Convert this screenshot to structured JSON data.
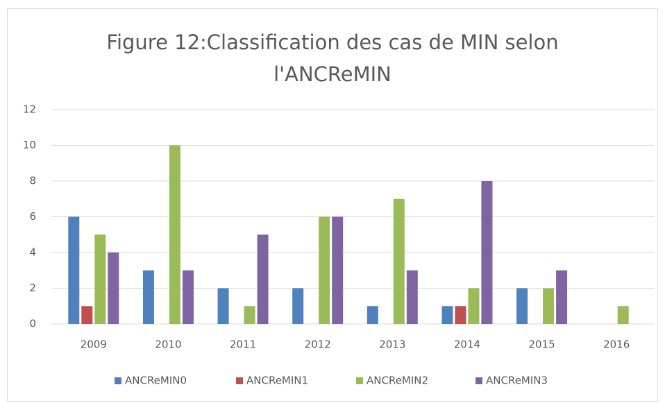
{
  "chart_data": {
    "type": "bar",
    "title": "Figure 12:Classification des cas de MIN selon l'ANCReMIN",
    "categories": [
      "2009",
      "2010",
      "2011",
      "2012",
      "2013",
      "2014",
      "2015",
      "2016"
    ],
    "series": [
      {
        "name": "ANCReMIN0",
        "color": "#4f81bd",
        "values": [
          6,
          3,
          2,
          2,
          1,
          1,
          2,
          0
        ]
      },
      {
        "name": "ANCReMIN1",
        "color": "#c0504d",
        "values": [
          1,
          0,
          0,
          0,
          0,
          1,
          0,
          0
        ]
      },
      {
        "name": "ANCReMIN2",
        "color": "#9bbb59",
        "values": [
          5,
          10,
          1,
          6,
          7,
          2,
          2,
          1
        ]
      },
      {
        "name": "ANCReMIN3",
        "color": "#8064a2",
        "values": [
          4,
          3,
          5,
          6,
          3,
          8,
          3,
          0
        ]
      }
    ],
    "ylim": [
      0,
      12
    ],
    "yticks": [
      0,
      2,
      4,
      6,
      8,
      10,
      12
    ],
    "grid": true,
    "legend": "bottom"
  }
}
